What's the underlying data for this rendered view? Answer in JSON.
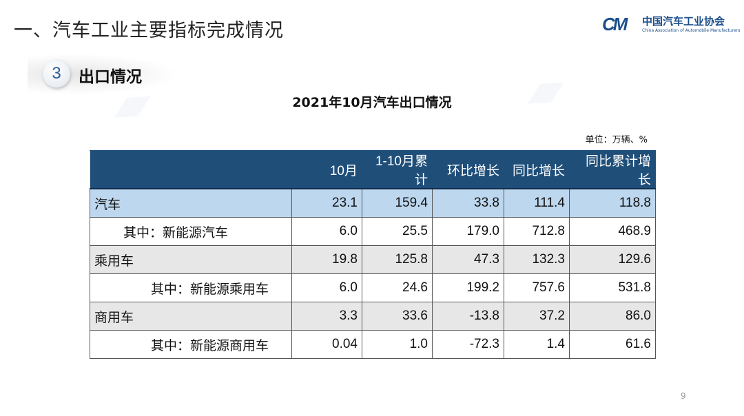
{
  "title": "一、汽车工业主要指标完成情况",
  "logo": {
    "mark": "CM",
    "cn": "中国汽车工业协会",
    "en": "China Association of Automobile Manufacturers"
  },
  "section": {
    "number": "3",
    "title": "出口情况"
  },
  "table_title": "2021年10月汽车出口情况",
  "unit": "单位：万辆、%",
  "columns": [
    "",
    "10月",
    "1-10月累计",
    "环比增长",
    "同比增长",
    "同比累计增长"
  ],
  "rows": [
    {
      "label": "汽车",
      "values": [
        "23.1",
        "159.4",
        "33.8",
        "111.4",
        "118.8"
      ]
    },
    {
      "label": "其中：新能源汽车",
      "values": [
        "6.0",
        "25.5",
        "179.0",
        "712.8",
        "468.9"
      ]
    },
    {
      "label": "乘用车",
      "values": [
        "19.8",
        "125.8",
        "47.3",
        "132.3",
        "129.6"
      ]
    },
    {
      "label": "其中：新能源乘用车",
      "values": [
        "6.0",
        "24.6",
        "199.2",
        "757.6",
        "531.8"
      ]
    },
    {
      "label": "商用车",
      "values": [
        "3.3",
        "33.6",
        "-13.8",
        "37.2",
        "86.0"
      ]
    },
    {
      "label": "其中：新能源商用车",
      "values": [
        "0.04",
        "1.0",
        "-72.3",
        "1.4",
        "61.6"
      ]
    }
  ],
  "page_number": "9"
}
